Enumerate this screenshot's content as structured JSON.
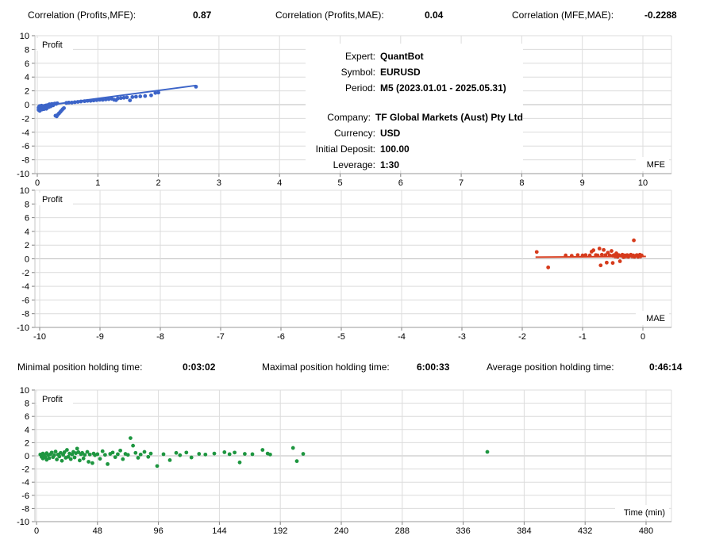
{
  "report": {
    "correlations": [
      {
        "label": "Correlation (Profits,MFE):",
        "value": "0.87"
      },
      {
        "label": "Correlation (Profits,MAE):",
        "value": "0.04"
      },
      {
        "label": "Correlation (MFE,MAE):",
        "value": "-0.2288"
      }
    ],
    "holding_times": [
      {
        "label": "Minimal position holding time:",
        "value": "0:03:02"
      },
      {
        "label": "Maximal position holding time:",
        "value": "6:00:33"
      },
      {
        "label": "Average position holding time:",
        "value": "0:46:14"
      }
    ],
    "info": {
      "rows": [
        {
          "label": "Expert:",
          "value": "QuantBot"
        },
        {
          "label": "Symbol:",
          "value": "EURUSD"
        },
        {
          "label": "Period:",
          "value": "M5 (2023.01.01 - 2025.05.31)"
        },
        {
          "label": "Company:",
          "value": "TF Global Markets (Aust) Pty Ltd"
        },
        {
          "label": "Currency:",
          "value": "USD"
        },
        {
          "label": "Initial Deposit:",
          "value": "100.00"
        },
        {
          "label": "Leverage:",
          "value": "1:30"
        }
      ]
    },
    "colors": {
      "mfe_points": "#3c64c8",
      "mae_points": "#d63b1c",
      "time_points": "#1e9640",
      "grid": "#dcdcdc",
      "zero_line": "#bdbdbd",
      "axis": "#999999",
      "tick": "#808080"
    }
  },
  "chart_data": [
    {
      "type": "scatter",
      "title": "Profit vs MFE",
      "y_label": "Profit",
      "corner_label": "MFE",
      "color": "#3c64c8",
      "xlim": [
        0,
        10.5
      ],
      "ylim": [
        -10,
        10
      ],
      "x_ticks": [
        0,
        1,
        2,
        3,
        4,
        5,
        6,
        7,
        8,
        9,
        10
      ],
      "y_ticks": [
        10,
        8,
        6,
        4,
        2,
        0,
        -2,
        -4,
        -6,
        -8,
        -10
      ],
      "trend_line": {
        "x1": 0,
        "y1": -0.28,
        "x2": 2.62,
        "y2": 2.78
      },
      "points": [
        [
          0.02,
          -0.45
        ],
        [
          0.02,
          -0.75
        ],
        [
          0.03,
          -0.3
        ],
        [
          0.03,
          -0.6
        ],
        [
          0.04,
          -0.9
        ],
        [
          0.04,
          -0.2
        ],
        [
          0.05,
          -0.5
        ],
        [
          0.05,
          -0.78
        ],
        [
          0.06,
          -0.35
        ],
        [
          0.06,
          -0.62
        ],
        [
          0.07,
          -0.15
        ],
        [
          0.07,
          -0.45
        ],
        [
          0.08,
          -0.7
        ],
        [
          0.08,
          -0.3
        ],
        [
          0.09,
          -0.55
        ],
        [
          0.1,
          -0.2
        ],
        [
          0.1,
          -0.45
        ],
        [
          0.11,
          -0.65
        ],
        [
          0.12,
          -0.35
        ],
        [
          0.13,
          -0.15
        ],
        [
          0.13,
          -0.5
        ],
        [
          0.14,
          -0.3
        ],
        [
          0.15,
          -0.6
        ],
        [
          0.15,
          -0.1
        ],
        [
          0.16,
          -0.4
        ],
        [
          0.17,
          -0.25
        ],
        [
          0.18,
          -0.05
        ],
        [
          0.19,
          -0.35
        ],
        [
          0.2,
          -0.15
        ],
        [
          0.2,
          0.05
        ],
        [
          0.22,
          -0.25
        ],
        [
          0.23,
          0
        ],
        [
          0.24,
          0.1
        ],
        [
          0.26,
          -0.1
        ],
        [
          0.27,
          0.1
        ],
        [
          0.29,
          0.15
        ],
        [
          0.3,
          -1.6
        ],
        [
          0.31,
          0.1
        ],
        [
          0.32,
          -1.7
        ],
        [
          0.33,
          0.2
        ],
        [
          0.34,
          -1.45
        ],
        [
          0.36,
          -1.25
        ],
        [
          0.38,
          -1.05
        ],
        [
          0.4,
          -0.85
        ],
        [
          0.42,
          -0.65
        ],
        [
          0.44,
          -0.5
        ],
        [
          0.48,
          0.25
        ],
        [
          0.52,
          0.3
        ],
        [
          0.57,
          0.3
        ],
        [
          0.62,
          0.35
        ],
        [
          0.67,
          0.4
        ],
        [
          0.72,
          0.45
        ],
        [
          0.78,
          0.5
        ],
        [
          0.83,
          0.55
        ],
        [
          0.88,
          0.55
        ],
        [
          0.93,
          0.6
        ],
        [
          0.98,
          0.65
        ],
        [
          1.03,
          0.7
        ],
        [
          1.08,
          0.7
        ],
        [
          1.13,
          0.75
        ],
        [
          1.18,
          0.8
        ],
        [
          1.23,
          0.85
        ],
        [
          1.27,
          0.7
        ],
        [
          1.3,
          0.65
        ],
        [
          1.33,
          0.9
        ],
        [
          1.38,
          0.95
        ],
        [
          1.43,
          1
        ],
        [
          1.48,
          1.05
        ],
        [
          1.53,
          0.62
        ],
        [
          1.57,
          1.1
        ],
        [
          1.63,
          1.15
        ],
        [
          1.7,
          1.2
        ],
        [
          1.78,
          1.25
        ],
        [
          1.88,
          1.35
        ],
        [
          1.95,
          1.7
        ],
        [
          2,
          1.75
        ],
        [
          2.62,
          2.6
        ]
      ]
    },
    {
      "type": "scatter",
      "title": "Profit vs MAE",
      "y_label": "Profit",
      "corner_label": "MAE",
      "color": "#d63b1c",
      "xlim": [
        -10.1,
        0.45
      ],
      "ylim": [
        -10,
        10
      ],
      "x_ticks": [
        -10,
        -9,
        -8,
        -7,
        -6,
        -5,
        -4,
        -3,
        -2,
        -1,
        0
      ],
      "y_ticks": [
        10,
        8,
        6,
        4,
        2,
        0,
        -2,
        -4,
        -6,
        -8,
        -10
      ],
      "trend_line": {
        "x1": -1.78,
        "y1": 0.25,
        "x2": 0.05,
        "y2": 0.35
      },
      "points": [
        [
          -1.76,
          1
        ],
        [
          -1.57,
          -1.25
        ],
        [
          -1.28,
          0.5
        ],
        [
          -1.18,
          0.45
        ],
        [
          -1.08,
          0.55
        ],
        [
          -1,
          0.5
        ],
        [
          -0.95,
          0.55
        ],
        [
          -0.88,
          0.5
        ],
        [
          -0.85,
          1.05
        ],
        [
          -0.82,
          1.25
        ],
        [
          -0.78,
          0.55
        ],
        [
          -0.75,
          0.5
        ],
        [
          -0.72,
          1.5
        ],
        [
          -0.7,
          -0.95
        ],
        [
          -0.68,
          0.6
        ],
        [
          -0.65,
          1.3
        ],
        [
          -0.62,
          0.55
        ],
        [
          -0.6,
          -0.55
        ],
        [
          -0.58,
          0.9
        ],
        [
          -0.55,
          0.5
        ],
        [
          -0.52,
          1.15
        ],
        [
          -0.5,
          -0.6
        ],
        [
          -0.5,
          0.45
        ],
        [
          -0.48,
          0.55
        ],
        [
          -0.46,
          0.35
        ],
        [
          -0.44,
          0.8
        ],
        [
          -0.42,
          0.3
        ],
        [
          -0.4,
          0.55
        ],
        [
          -0.38,
          -0.35
        ],
        [
          -0.36,
          0.45
        ],
        [
          -0.34,
          0.6
        ],
        [
          -0.32,
          0.25
        ],
        [
          -0.3,
          0.5
        ],
        [
          -0.28,
          0.35
        ],
        [
          -0.26,
          0.55
        ],
        [
          -0.24,
          0.3
        ],
        [
          -0.22,
          0.45
        ],
        [
          -0.2,
          0.6
        ],
        [
          -0.18,
          0.35
        ],
        [
          -0.16,
          0.5
        ],
        [
          -0.15,
          2.7
        ],
        [
          -0.14,
          0.3
        ],
        [
          -0.12,
          0.45
        ],
        [
          -0.1,
          0.55
        ],
        [
          -0.08,
          0.3
        ],
        [
          -0.06,
          0.45
        ],
        [
          -0.05,
          0.6
        ],
        [
          -0.04,
          0.35
        ],
        [
          -0.02,
          0.5
        ]
      ]
    },
    {
      "type": "scatter",
      "title": "Profit vs holding time",
      "y_label": "Profit",
      "corner_label": "Time (min)",
      "color": "#1e9640",
      "xlim": [
        0,
        500
      ],
      "ylim": [
        -10,
        10
      ],
      "x_ticks": [
        0,
        48,
        96,
        144,
        192,
        240,
        288,
        336,
        384,
        432,
        480
      ],
      "y_ticks": [
        10,
        8,
        6,
        4,
        2,
        0,
        -2,
        -4,
        -6,
        -8,
        -10
      ],
      "trend_line": null,
      "points": [
        [
          3,
          0.2
        ],
        [
          4,
          -0.15
        ],
        [
          5,
          0.35
        ],
        [
          5,
          -0.4
        ],
        [
          6,
          0.1
        ],
        [
          7,
          -0.25
        ],
        [
          8,
          0.4
        ],
        [
          8,
          -0.6
        ],
        [
          9,
          0.15
        ],
        [
          10,
          -0.35
        ],
        [
          11,
          0.25
        ],
        [
          12,
          0.5
        ],
        [
          13,
          -0.2
        ],
        [
          14,
          0.1
        ],
        [
          15,
          0.65
        ],
        [
          16,
          -0.55
        ],
        [
          17,
          0.2
        ],
        [
          18,
          -0.1
        ],
        [
          19,
          0.45
        ],
        [
          20,
          -0.75
        ],
        [
          21,
          0.15
        ],
        [
          22,
          0.55
        ],
        [
          23,
          -0.3
        ],
        [
          24,
          0.9
        ],
        [
          25,
          -0.15
        ],
        [
          26,
          0.35
        ],
        [
          27,
          -0.5
        ],
        [
          28,
          0.2
        ],
        [
          29,
          0.6
        ],
        [
          30,
          -0.25
        ],
        [
          31,
          0.4
        ],
        [
          32,
          1.1
        ],
        [
          33,
          0.55
        ],
        [
          34,
          -0.7
        ],
        [
          35,
          0.25
        ],
        [
          36,
          0.45
        ],
        [
          37,
          -0.4
        ],
        [
          38,
          0.15
        ],
        [
          40,
          0.6
        ],
        [
          41,
          -0.9
        ],
        [
          42,
          0.2
        ],
        [
          44,
          -1.1
        ],
        [
          45,
          0.35
        ],
        [
          46,
          0.1
        ],
        [
          48,
          0.25
        ],
        [
          50,
          -0.45
        ],
        [
          52,
          0.7
        ],
        [
          54,
          0.15
        ],
        [
          56,
          -1.25
        ],
        [
          58,
          0.3
        ],
        [
          60,
          0.5
        ],
        [
          62,
          -0.2
        ],
        [
          64,
          0.25
        ],
        [
          66,
          0.8
        ],
        [
          68,
          -0.5
        ],
        [
          70,
          0.3
        ],
        [
          72,
          0.15
        ],
        [
          74,
          2.7
        ],
        [
          76,
          1.55
        ],
        [
          78,
          0.45
        ],
        [
          80,
          -0.3
        ],
        [
          82,
          0.2
        ],
        [
          85,
          0.6
        ],
        [
          88,
          -0.15
        ],
        [
          90,
          0.35
        ],
        [
          95,
          -1.55
        ],
        [
          100,
          0.25
        ],
        [
          105,
          -0.65
        ],
        [
          110,
          0.45
        ],
        [
          113,
          0.1
        ],
        [
          118,
          0.5
        ],
        [
          122,
          -0.25
        ],
        [
          128,
          0.3
        ],
        [
          133,
          0.2
        ],
        [
          140,
          0.35
        ],
        [
          148,
          0.55
        ],
        [
          152,
          0.25
        ],
        [
          156,
          0.5
        ],
        [
          160,
          -1
        ],
        [
          164,
          0.3
        ],
        [
          170,
          0.25
        ],
        [
          178,
          0.9
        ],
        [
          182,
          0.35
        ],
        [
          184,
          0.2
        ],
        [
          202,
          1.2
        ],
        [
          205,
          -0.8
        ],
        [
          210,
          0.3
        ],
        [
          355,
          0.6
        ]
      ]
    }
  ]
}
